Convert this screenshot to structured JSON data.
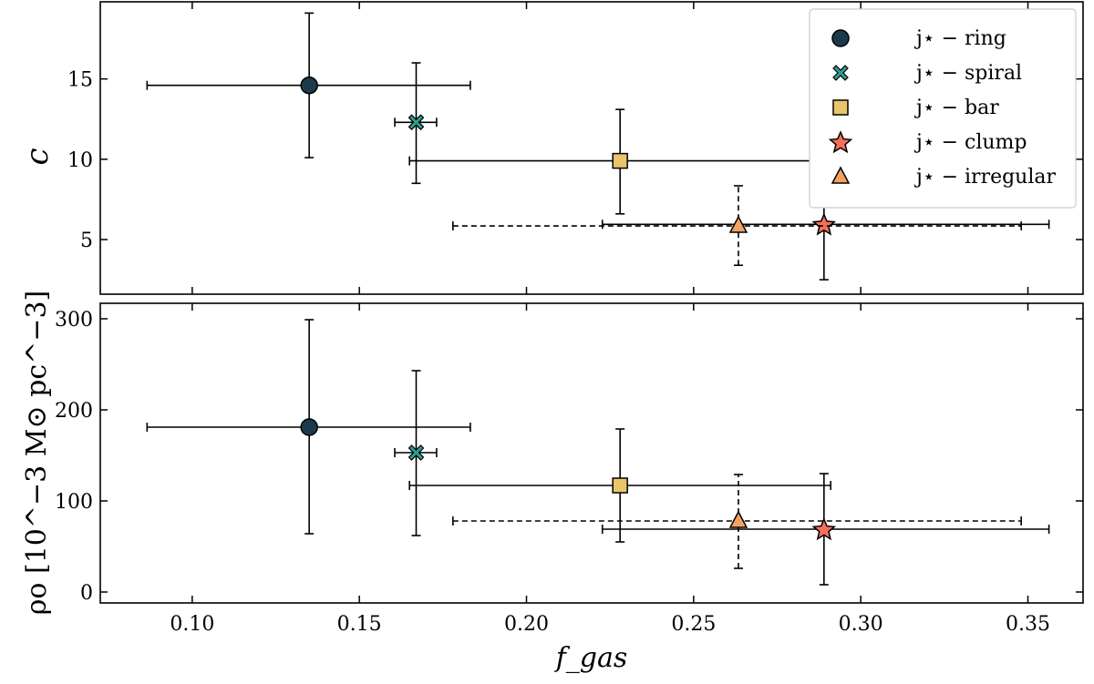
{
  "chart_data": [
    {
      "type": "scatter",
      "panel": "top",
      "ylabel": "c",
      "xlim": [
        0.0725,
        0.3665
      ],
      "ylim": [
        1.6,
        19.8
      ],
      "xticks": [
        "0.10",
        "0.15",
        "0.20",
        "0.25",
        "0.30",
        "0.35"
      ],
      "xtick_values": [
        0.1,
        0.15,
        0.2,
        0.25,
        0.3,
        0.35
      ],
      "xtick_labels_shown": false,
      "yticks": [
        "5",
        "10",
        "15"
      ],
      "ytick_values": [
        5,
        10,
        15
      ],
      "legend": {
        "placement": "top-right"
      },
      "series": [
        {
          "name": "j⋆ − ring",
          "marker": "circle",
          "color": "#1d3a4b",
          "linestyle": "solid",
          "x": 0.135,
          "xerr": [
            0.0865,
            0.1832
          ],
          "y": 14.6,
          "yerr": [
            10.1,
            19.1
          ]
        },
        {
          "name": "j⋆ − spiral",
          "marker": "x",
          "color": "#2a9d8f",
          "linestyle": "solid",
          "x": 0.167,
          "xerr": [
            0.1606,
            0.1731
          ],
          "y": 12.3,
          "yerr": [
            8.5,
            16.0
          ]
        },
        {
          "name": "j⋆ − bar",
          "marker": "square",
          "color": "#e9c46a",
          "linestyle": "solid",
          "x": 0.228,
          "xerr": [
            0.165,
            0.291
          ],
          "y": 9.9,
          "yerr": [
            6.6,
            13.1
          ]
        },
        {
          "name": "j⋆ − clump",
          "marker": "star",
          "color": "#f4705a",
          "linestyle": "solid",
          "x": 0.289,
          "xerr": [
            0.2227,
            0.3563
          ],
          "y": 5.95,
          "yerr": [
            2.5,
            9.4
          ]
        },
        {
          "name": "j⋆ − irregular",
          "marker": "triangle",
          "color": "#f4a261",
          "linestyle": "dashed",
          "x": 0.2634,
          "xerr": [
            0.178,
            0.348
          ],
          "y": 5.85,
          "yerr": [
            3.4,
            8.35
          ]
        }
      ]
    },
    {
      "type": "scatter",
      "panel": "bottom",
      "xlabel": "f_gas",
      "ylabel": "ρo [10^−3 M⊙ pc^−3]",
      "xlim": [
        0.0725,
        0.3665
      ],
      "ylim": [
        -12,
        317
      ],
      "xticks": [
        "0.10",
        "0.15",
        "0.20",
        "0.25",
        "0.30",
        "0.35"
      ],
      "xtick_values": [
        0.1,
        0.15,
        0.2,
        0.25,
        0.3,
        0.35
      ],
      "yticks": [
        "0",
        "100",
        "200",
        "300"
      ],
      "ytick_values": [
        0,
        100,
        200,
        300
      ],
      "series": [
        {
          "name": "j⋆ − ring",
          "marker": "circle",
          "color": "#1d3a4b",
          "linestyle": "solid",
          "x": 0.135,
          "xerr": [
            0.0865,
            0.1832
          ],
          "y": 181,
          "yerr": [
            64,
            299
          ],
          "yerr_line_y": 181
        },
        {
          "name": "j⋆ − spiral",
          "marker": "x",
          "color": "#2a9d8f",
          "linestyle": "solid",
          "x": 0.167,
          "xerr": [
            0.1606,
            0.1731
          ],
          "y": 153,
          "yerr": [
            62,
            243
          ]
        },
        {
          "name": "j⋆ − bar",
          "marker": "square",
          "color": "#e9c46a",
          "linestyle": "solid",
          "x": 0.228,
          "xerr": [
            0.165,
            0.291
          ],
          "y": 117,
          "yerr": [
            55,
            179
          ]
        },
        {
          "name": "j⋆ − clump",
          "marker": "star",
          "color": "#f4705a",
          "linestyle": "solid",
          "x": 0.289,
          "xerr": [
            0.2227,
            0.3563
          ],
          "y": 69,
          "yerr": [
            8,
            130
          ]
        },
        {
          "name": "j⋆ − irregular",
          "marker": "triangle",
          "color": "#f4a261",
          "linestyle": "dashed",
          "x": 0.2634,
          "xerr": [
            0.178,
            0.348
          ],
          "y": 78,
          "yerr": [
            26,
            129
          ]
        }
      ]
    }
  ]
}
